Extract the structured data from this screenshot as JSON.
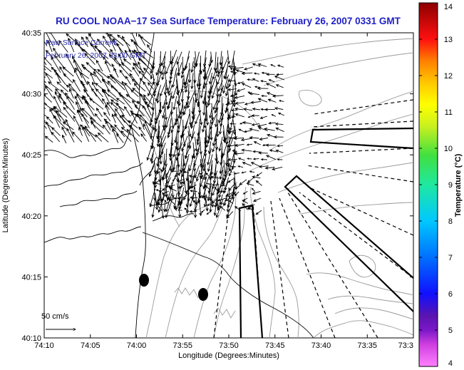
{
  "title": "RU COOL  NOAA−17  Sea Surface Temperature:  February 26, 2007 0331 GMT",
  "overlay": {
    "line1": "Raw Surface Current:",
    "line2": "February 26, 2007 03:00 GMT"
  },
  "scale_label": "50 cm/s",
  "axes": {
    "xlabel": "Longitude (Degrees:Minutes)",
    "ylabel": "Latitude (Degrees:Minutes)",
    "xticks": [
      "74:10",
      "74:05",
      "74:00",
      "73:55",
      "73:50",
      "73:45",
      "73:40",
      "73:35",
      "73:3"
    ],
    "yticks": [
      "40:35",
      "40:30",
      "40:25",
      "40:20",
      "40:15",
      "40:10"
    ]
  },
  "colorbar": {
    "label": "Temperature (°C)",
    "ticks": [
      "14",
      "13",
      "12",
      "11",
      "10",
      "9",
      "8",
      "7",
      "6",
      "5",
      "4"
    ],
    "min": 4,
    "max": 14
  },
  "colors": {
    "title": "#2020c8",
    "overlay_text": "#2a2ab0",
    "land_contour": "#000000",
    "bathymetry": "#9a9a9a"
  }
}
